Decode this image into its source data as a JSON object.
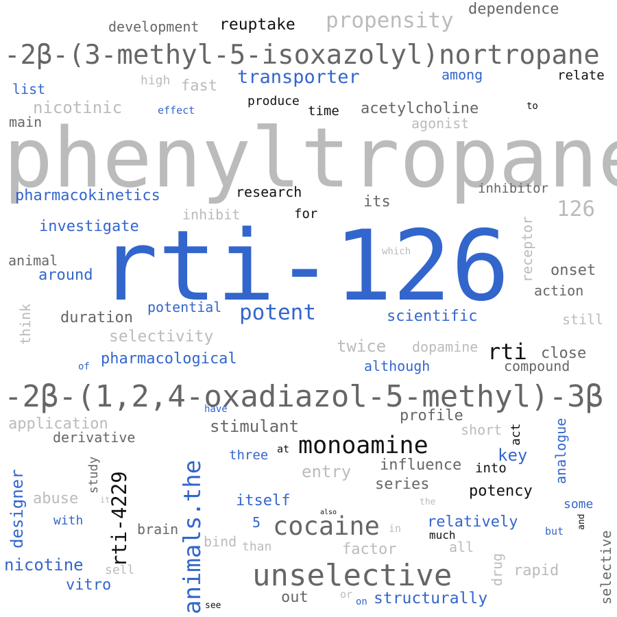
{
  "colors": {
    "blue": "#3366cc",
    "dark": "#666666",
    "light": "#bbbbbb",
    "black": "#111111"
  },
  "words": [
    "phenyltropane",
    "rti-126",
    "-2β-(3-methyl-5-isoxazolyl)nortropane",
    "-2β-(1,2,4-oxadiazol-5-methyl)-3β",
    "unselective",
    "animals.the",
    "cocaine",
    "monoamine",
    "rti-4229",
    "potent",
    "transporter",
    "propensity",
    "dependence",
    "development",
    "reuptake",
    "nicotinic",
    "acetylcholine",
    "pharmacokinetics",
    "126",
    "investigate",
    "scientific",
    "selectivity",
    "duration",
    "pharmacological",
    "potential",
    "rti",
    "twice",
    "dopamine",
    "although",
    "close",
    "compound",
    "onset",
    "action",
    "research",
    "inhibitor",
    "its",
    "for",
    "inhibit",
    "around",
    "animal",
    "think",
    "receptor",
    "still",
    "which",
    "high",
    "fast",
    "list",
    "effect",
    "produce",
    "time",
    "agonist",
    "main",
    "among",
    "relate",
    "to",
    "stimulant",
    "profile",
    "application",
    "derivative",
    "short",
    "act",
    "analogue",
    "key",
    "influence",
    "into",
    "entry",
    "series",
    "potency",
    "three",
    "at",
    "have",
    "designer",
    "study",
    "abuse",
    "it",
    "itself",
    "with",
    "brain",
    "5",
    "relatively",
    "some",
    "and",
    "but",
    "much",
    "all",
    "in",
    "bind",
    "than",
    "factor",
    "drug",
    "rapid",
    "nicotine",
    "sell",
    "vitro",
    "out",
    "see",
    "or",
    "on",
    "structurally",
    "selective",
    "also",
    "the",
    "of"
  ]
}
